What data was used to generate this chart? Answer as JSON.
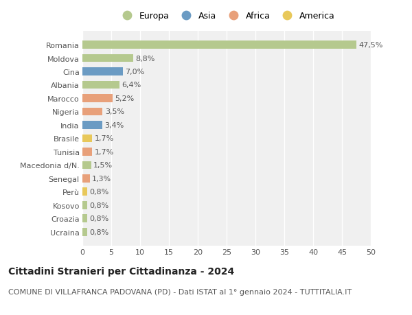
{
  "title": "Cittadini Stranieri per Cittadinanza - 2024",
  "subtitle": "COMUNE DI VILLAFRANCA PADOVANA (PD) - Dati ISTAT al 1° gennaio 2024 - TUTTITALIA.IT",
  "categories": [
    "Romania",
    "Moldova",
    "Cina",
    "Albania",
    "Marocco",
    "Nigeria",
    "India",
    "Brasile",
    "Tunisia",
    "Macedonia d/N.",
    "Senegal",
    "Perù",
    "Kosovo",
    "Croazia",
    "Ucraina"
  ],
  "values": [
    47.5,
    8.8,
    7.0,
    6.4,
    5.2,
    3.5,
    3.4,
    1.7,
    1.7,
    1.5,
    1.3,
    0.8,
    0.8,
    0.8,
    0.8
  ],
  "labels": [
    "47,5%",
    "8,8%",
    "7,0%",
    "6,4%",
    "5,2%",
    "3,5%",
    "3,4%",
    "1,7%",
    "1,7%",
    "1,5%",
    "1,3%",
    "0,8%",
    "0,8%",
    "0,8%",
    "0,8%"
  ],
  "colors": [
    "#b5c98e",
    "#b5c98e",
    "#6b9bc3",
    "#b5c98e",
    "#e8a07a",
    "#e8a07a",
    "#6b9bc3",
    "#e8c85a",
    "#e8a07a",
    "#b5c98e",
    "#e8a07a",
    "#e8c85a",
    "#b5c98e",
    "#b5c98e",
    "#b5c98e"
  ],
  "legend": [
    {
      "label": "Europa",
      "color": "#b5c98e"
    },
    {
      "label": "Asia",
      "color": "#6b9bc3"
    },
    {
      "label": "Africa",
      "color": "#e8a07a"
    },
    {
      "label": "America",
      "color": "#e8c85a"
    }
  ],
  "xlim": [
    0,
    50
  ],
  "xticks": [
    0,
    5,
    10,
    15,
    20,
    25,
    30,
    35,
    40,
    45,
    50
  ],
  "background_color": "#ffffff",
  "plot_background": "#f0f0f0",
  "grid_color": "#ffffff",
  "bar_height": 0.6,
  "title_fontsize": 10,
  "subtitle_fontsize": 8,
  "tick_fontsize": 8,
  "label_fontsize": 8,
  "legend_fontsize": 9
}
